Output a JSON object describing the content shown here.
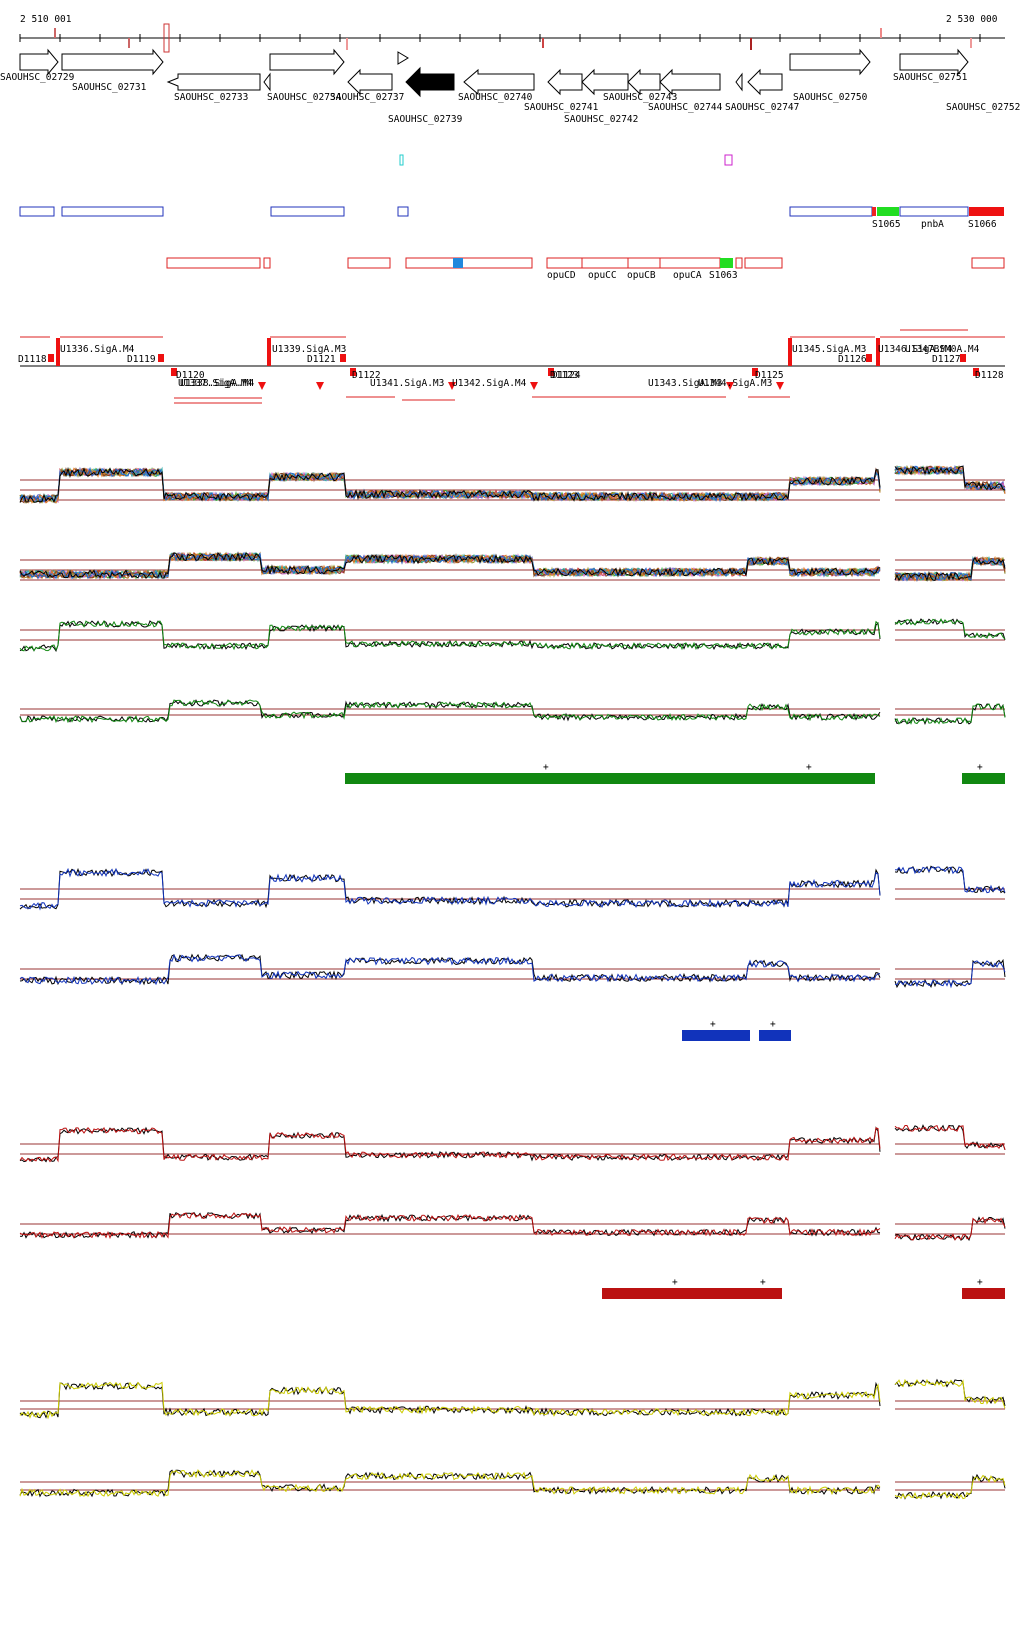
{
  "ruler": {
    "left_label": "2 510 001",
    "right_label": "2 530 000"
  },
  "genes": [
    {
      "label": "SAOUHSC_02729",
      "dir": "+"
    },
    {
      "label": "SAOUHSC_02731",
      "dir": "+"
    },
    {
      "label": "SAOUHSC_02733",
      "dir": "-"
    },
    {
      "label": "SAOUHSC_02734",
      "dir": "+"
    },
    {
      "label": "SAOUHSC_02737",
      "dir": "-"
    },
    {
      "label": "SAOUHSC_02739",
      "dir": "-",
      "filled": true
    },
    {
      "label": "SAOUHSC_02740",
      "dir": "-"
    },
    {
      "label": "SAOUHSC_02741",
      "dir": "-"
    },
    {
      "label": "SAOUHSC_02742",
      "dir": "-"
    },
    {
      "label": "SAOUHSC_02743",
      "dir": "-"
    },
    {
      "label": "SAOUHSC_02744",
      "dir": "-"
    },
    {
      "label": "SAOUHSC_02747",
      "dir": "-"
    },
    {
      "label": "SAOUHSC_02750",
      "dir": "+"
    },
    {
      "label": "SAOUHSC_02751",
      "dir": "+"
    },
    {
      "label": "SAOUHSC_02752",
      "dir": "+"
    }
  ],
  "feature_labels_blue": [
    "S1065",
    "pnbA",
    "S1066"
  ],
  "feature_labels_red": [
    "opuCD",
    "opuCC",
    "opuCB",
    "opuCA",
    "S1063"
  ],
  "upper_markers": [
    "D1118",
    "U1336.SigA.M4",
    "D1119",
    "U1339.SigA.M3",
    "D1121",
    "U1345.SigA.M3",
    "D1126",
    "U1346.SigA.M4",
    "D1127",
    "D1128",
    "U1347BSM0A.M4"
  ],
  "lower_markers": [
    "D1120",
    "U1338.SigA.M4",
    "U1337.SigA.M4",
    "D1122",
    "U1341.SigA.M3",
    "U1342.SigA.M4",
    "D1123",
    "D1124",
    "U1343.SigA.M3",
    "U1344.SigA.M3",
    "D1125"
  ],
  "segment_plus": "+",
  "colors": {
    "gene_feature": "#2233bb",
    "red_feature": "#dd2222",
    "green_track": "#118811",
    "blue_track": "#1133bb",
    "red_track": "#bb1111",
    "yellow_track": "#cccc00",
    "ref_line": "#993333"
  }
}
